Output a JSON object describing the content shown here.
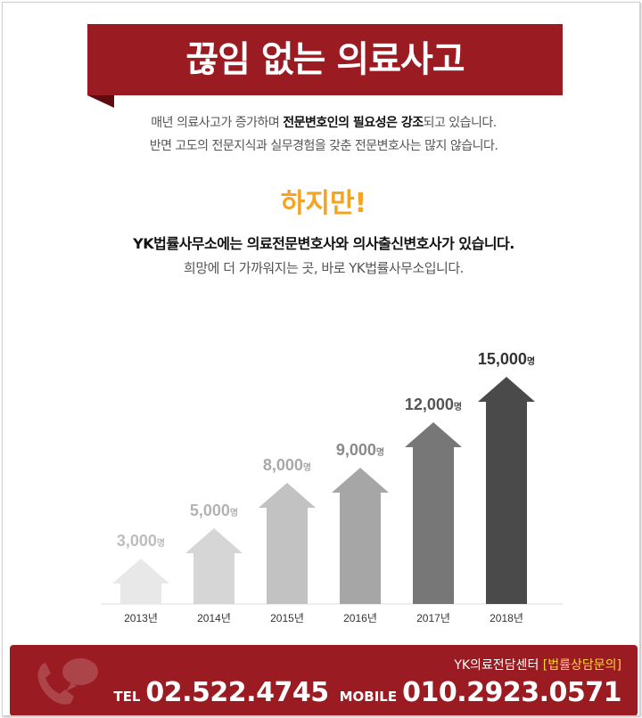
{
  "banner": {
    "title": "끊임 없는 의료사고"
  },
  "intro": {
    "line1_a": "매년 의료사고가 증가하며 ",
    "line1_b": "전문변호인의 필요성은 강조",
    "line1_c": "되고 있습니다.",
    "line2": "반면 고도의 전문지식과 실무경험을 갖춘 전문변호사는 많지 않습니다."
  },
  "however": "하지만!",
  "headline": "YK법률사무소에는 의료전문변호사와 의사출신변호사가 있습니다.",
  "subline": "희망에 더 가까워지는 곳, 바로 YK법률사무소입니다.",
  "chart_data": {
    "type": "bar",
    "categories": [
      "2013년",
      "2014년",
      "2015년",
      "2016년",
      "2017년",
      "2018년"
    ],
    "values": [
      3000,
      5000,
      8000,
      9000,
      12000,
      15000
    ],
    "value_labels": [
      "3,000",
      "5,000",
      "8,000",
      "9,000",
      "12,000",
      "15,000"
    ],
    "unit": "명",
    "title": "",
    "xlabel": "",
    "ylabel": "",
    "grid": false,
    "colors": [
      "#e8e8e8",
      "#d6d6d6",
      "#c2c2c2",
      "#a6a6a6",
      "#777777",
      "#4a4a4a"
    ],
    "label_colors": [
      "#bdbdbd",
      "#b3b3b3",
      "#a9a9a9",
      "#8a8a8a",
      "#555555",
      "#333333"
    ]
  },
  "footer": {
    "center_label": "YK의료전담센터",
    "consult": "[법률상담문의]",
    "tel_label": "TEL",
    "tel": "02.522.4745",
    "mobile_label": "MOBILE",
    "mobile": "010.2923.0571",
    "icon": "phone-chat-icon"
  },
  "colors": {
    "accent": "#9a1c22",
    "highlight": "#f4a322"
  }
}
